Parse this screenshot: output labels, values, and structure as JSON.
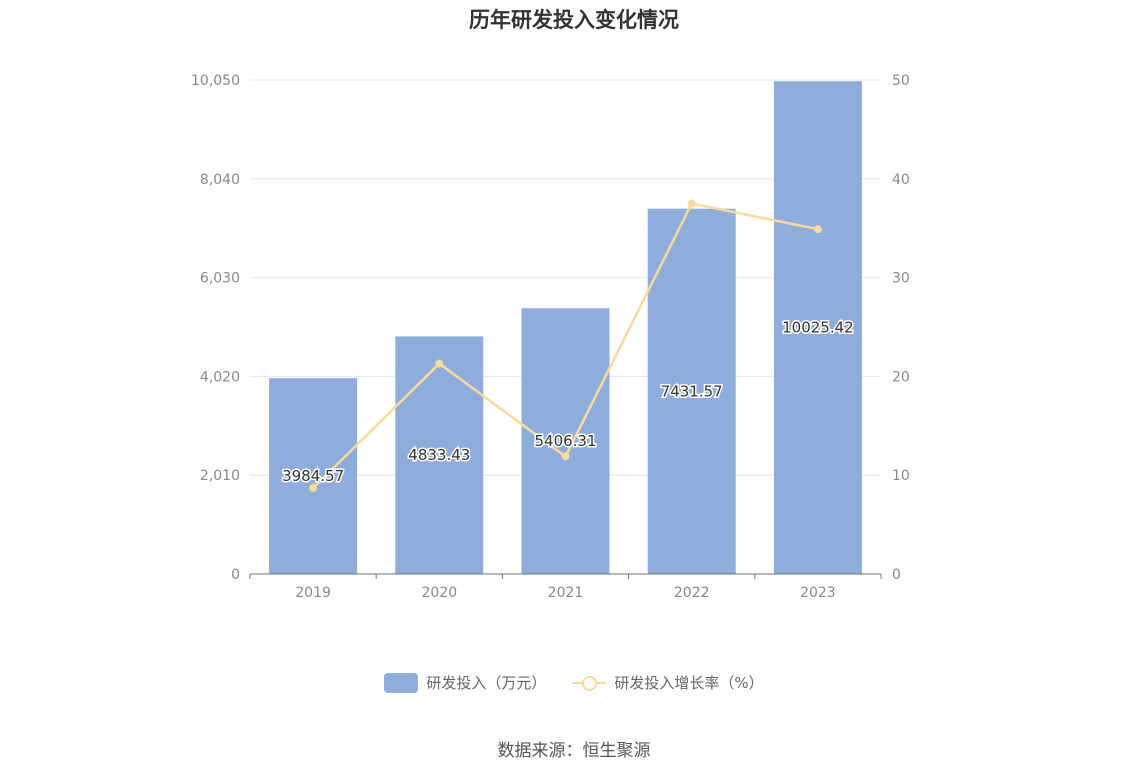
{
  "chart_data": {
    "type": "bar",
    "title": "历年研发投入变化情况",
    "categories": [
      "2019",
      "2020",
      "2021",
      "2022",
      "2023"
    ],
    "series": [
      {
        "name": "研发投入（万元）",
        "type": "bar",
        "axis": "left",
        "color": "#8eaddb",
        "values": [
          3984.57,
          4833.43,
          5406.31,
          7431.57,
          10025.42
        ],
        "labels": [
          "3984.57",
          "4833.43",
          "5406.31",
          "7431.57",
          "10025.42"
        ]
      },
      {
        "name": "研发投入增长率（%）",
        "type": "line",
        "axis": "right",
        "color": "#fad99f",
        "values": [
          8.7,
          21.3,
          11.9,
          37.5,
          34.9
        ]
      }
    ],
    "y_left": {
      "ylim": [
        0,
        10050
      ],
      "ticks": [
        "0",
        "2,010",
        "4,020",
        "6,030",
        "8,040",
        "10,050"
      ]
    },
    "y_right": {
      "ylim": [
        0,
        50
      ],
      "ticks": [
        "0",
        "10",
        "20",
        "30",
        "40",
        "50"
      ]
    },
    "grid": true,
    "legend_position": "bottom-center"
  },
  "source": "数据来源：恒生聚源"
}
